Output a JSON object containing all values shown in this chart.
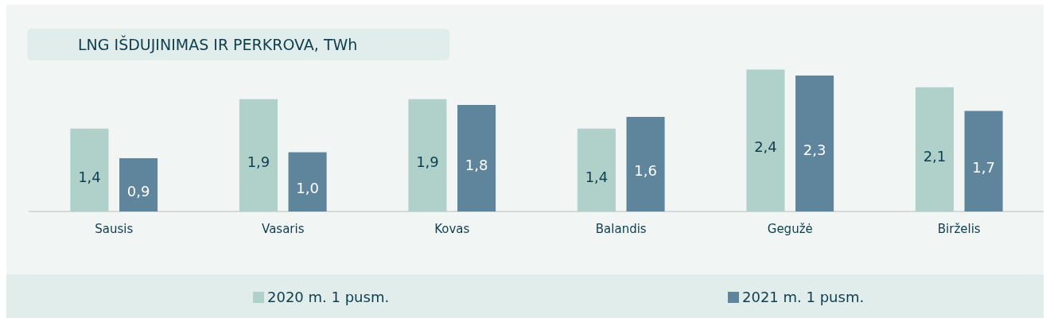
{
  "chart_data": {
    "type": "bar",
    "title": "LNG IŠDUJINIMAS IR PERKROVA, TWh",
    "categories": [
      "Sausis",
      "Vasaris",
      "Kovas",
      "Balandis",
      "Gegužė",
      "Birželis"
    ],
    "series": [
      {
        "name": "2020 m. 1 pusm.",
        "color": "#b0d0ca",
        "values": [
          1.4,
          1.9,
          1.9,
          1.4,
          2.4,
          2.1
        ],
        "value_labels": [
          "1,4",
          "1,9",
          "1,9",
          "1,4",
          "2,4",
          "2,1"
        ]
      },
      {
        "name": "2021 m. 1 pusm.",
        "color": "#5f859d",
        "values": [
          0.9,
          1.0,
          1.8,
          1.6,
          2.3,
          1.7
        ],
        "value_labels": [
          "0,9",
          "1,0",
          "1,8",
          "1,6",
          "2,3",
          "1,7"
        ]
      }
    ],
    "legend": "bottom",
    "grid": false
  }
}
